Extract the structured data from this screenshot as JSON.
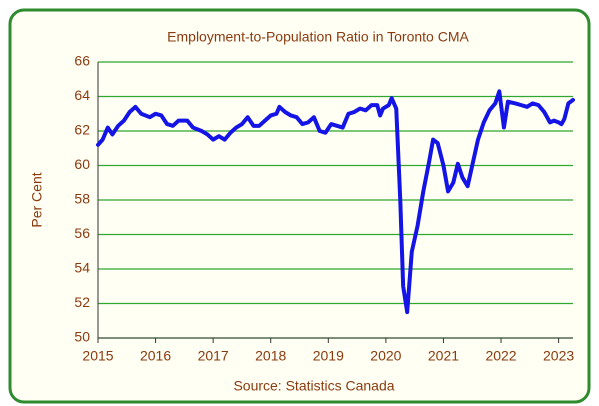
{
  "chart_data": {
    "type": "line",
    "title": "Employment-to-Population  Ratio in Toronto CMA",
    "y_label": "Per Cent",
    "source": "Source:  Statistics Canada",
    "series": [
      {
        "name": "Employment-to-Population Ratio",
        "color": "#1414e6",
        "x": [
          2015.0,
          2015.08,
          2015.17,
          2015.25,
          2015.35,
          2015.45,
          2015.55,
          2015.65,
          2015.75,
          2015.9,
          2016.0,
          2016.1,
          2016.2,
          2016.3,
          2016.4,
          2016.55,
          2016.65,
          2016.8,
          2016.9,
          2017.0,
          2017.1,
          2017.2,
          2017.3,
          2017.4,
          2017.5,
          2017.6,
          2017.7,
          2017.8,
          2017.9,
          2018.0,
          2018.1,
          2018.15,
          2018.25,
          2018.35,
          2018.45,
          2018.55,
          2018.65,
          2018.75,
          2018.85,
          2018.95,
          2019.05,
          2019.15,
          2019.25,
          2019.35,
          2019.45,
          2019.55,
          2019.65,
          2019.75,
          2019.85,
          2019.9,
          2019.95,
          2020.05,
          2020.1,
          2020.18,
          2020.25,
          2020.3,
          2020.37,
          2020.45,
          2020.55,
          2020.65,
          2020.75,
          2020.82,
          2020.9,
          2021.0,
          2021.08,
          2021.17,
          2021.25,
          2021.33,
          2021.42,
          2021.5,
          2021.6,
          2021.7,
          2021.8,
          2021.9,
          2021.97,
          2022.05,
          2022.12,
          2022.25,
          2022.35,
          2022.45,
          2022.55,
          2022.65,
          2022.75,
          2022.85,
          2022.92,
          2023.0,
          2023.05,
          2023.1,
          2023.17,
          2023.25
        ],
        "values": [
          61.2,
          61.5,
          62.2,
          61.8,
          62.3,
          62.6,
          63.1,
          63.4,
          63.0,
          62.8,
          63.0,
          62.9,
          62.4,
          62.3,
          62.6,
          62.6,
          62.2,
          62.0,
          61.8,
          61.5,
          61.7,
          61.5,
          61.9,
          62.2,
          62.4,
          62.8,
          62.3,
          62.3,
          62.6,
          62.9,
          63.0,
          63.4,
          63.1,
          62.9,
          62.8,
          62.4,
          62.5,
          62.8,
          62.0,
          61.9,
          62.4,
          62.3,
          62.2,
          63.0,
          63.1,
          63.3,
          63.2,
          63.5,
          63.5,
          62.9,
          63.3,
          63.5,
          63.9,
          63.3,
          58.0,
          53.0,
          51.5,
          55.0,
          56.5,
          58.5,
          60.2,
          61.5,
          61.3,
          60.0,
          58.5,
          59.0,
          60.1,
          59.3,
          58.8,
          60.0,
          61.5,
          62.5,
          63.2,
          63.6,
          64.3,
          62.2,
          63.7,
          63.6,
          63.5,
          63.4,
          63.6,
          63.5,
          63.1,
          62.5,
          62.6,
          62.5,
          62.4,
          62.7,
          63.6,
          63.8
        ]
      }
    ],
    "xlim": [
      2015,
      2023.25
    ],
    "xticks": [
      2015,
      2016,
      2017,
      2018,
      2019,
      2020,
      2021,
      2022,
      2023
    ],
    "ylim": [
      50,
      66
    ],
    "yticks": [
      50,
      52,
      54,
      56,
      58,
      60,
      62,
      64,
      66
    ],
    "grid": true
  }
}
